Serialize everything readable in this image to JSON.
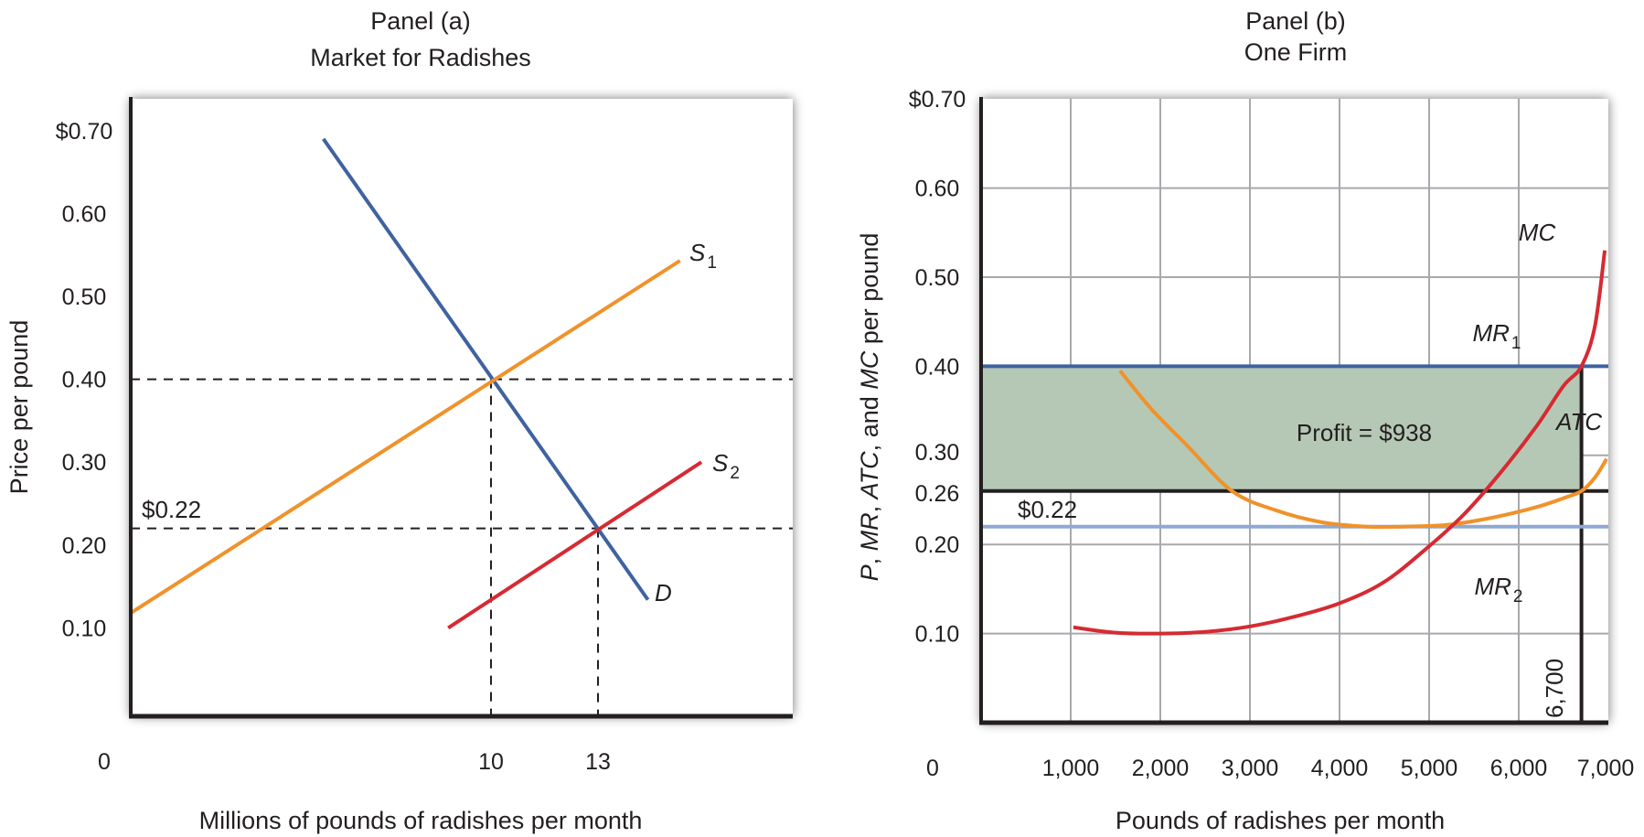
{
  "chart_data": [
    {
      "type": "line",
      "panel_label": "Panel (a)",
      "title": "Market for Radishes",
      "xlabel": "Millions of pounds of radishes per month",
      "ylabel": "Price per pound",
      "xlim": [
        0,
        18.5
      ],
      "ylim": [
        0,
        0.7
      ],
      "grid": false,
      "yticks": [
        {
          "value": 0.7,
          "label": "$0.70"
        },
        {
          "value": 0.6,
          "label": "0.60"
        },
        {
          "value": 0.5,
          "label": "0.50"
        },
        {
          "value": 0.4,
          "label": "0.40"
        },
        {
          "value": 0.3,
          "label": "0.30"
        },
        {
          "value": 0.2,
          "label": "0.20"
        },
        {
          "value": 0.1,
          "label": "0.10"
        }
      ],
      "xticks": [
        {
          "value": 0,
          "label": "0"
        },
        {
          "value": 10,
          "label": "10"
        },
        {
          "value": 13,
          "label": "13"
        }
      ],
      "series": [
        {
          "name": "D",
          "label": "D",
          "subscript": "",
          "color": "#3f62a0",
          "points": [
            [
              5.3,
              0.69
            ],
            [
              14.4,
              0.134
            ]
          ]
        },
        {
          "name": "S1",
          "label": "S",
          "subscript": "1",
          "color": "#f0922a",
          "points": [
            [
              -0.1,
              0.118
            ],
            [
              15.3,
              0.543
            ]
          ]
        },
        {
          "name": "S2",
          "label": "S",
          "subscript": "2",
          "color": "#d62a32",
          "points": [
            [
              8.8,
              0.1
            ],
            [
              15.9,
              0.3
            ]
          ]
        }
      ],
      "reference_lines": [
        {
          "orientation": "horizontal",
          "value": 0.4,
          "style": "dashed"
        },
        {
          "orientation": "horizontal",
          "value": 0.22,
          "style": "dashed"
        },
        {
          "orientation": "vertical",
          "value": 10,
          "from": 0,
          "to": 0.4,
          "style": "dashed"
        },
        {
          "orientation": "vertical",
          "value": 13,
          "from": 0,
          "to": 0.22,
          "style": "dashed"
        }
      ],
      "annotations": [
        {
          "text": "$0.22",
          "x": 0.4,
          "y": 0.22
        }
      ],
      "equilibria": [
        {
          "quantity": 10,
          "price": 0.4
        },
        {
          "quantity": 13,
          "price": 0.22
        }
      ]
    },
    {
      "type": "line",
      "panel_label": "Panel (b)",
      "title": "One Firm",
      "xlabel": "Pounds of radishes per month",
      "ylabel_parts": [
        {
          "text": "P",
          "italic": true
        },
        {
          "text": ", ",
          "italic": false
        },
        {
          "text": "MR",
          "italic": true
        },
        {
          "text": ", ",
          "italic": false
        },
        {
          "text": "ATC",
          "italic": true
        },
        {
          "text": ", and ",
          "italic": false
        },
        {
          "text": "MC",
          "italic": true
        },
        {
          "text": " per pound",
          "italic": false
        }
      ],
      "xlim": [
        0,
        7000
      ],
      "ylim": [
        0,
        0.7
      ],
      "grid": true,
      "yticks": [
        {
          "value": 0.7,
          "label": "$0.70"
        },
        {
          "value": 0.6,
          "label": "0.60"
        },
        {
          "value": 0.5,
          "label": "0.50"
        },
        {
          "value": 0.4,
          "label": "0.40"
        },
        {
          "value": 0.3,
          "label": "0.30"
        },
        {
          "value": 0.26,
          "label": "0.26"
        },
        {
          "value": 0.2,
          "label": "0.20"
        },
        {
          "value": 0.1,
          "label": "0.10"
        }
      ],
      "xticks": [
        {
          "value": 0,
          "label": "0"
        },
        {
          "value": 1000,
          "label": "1,000"
        },
        {
          "value": 2000,
          "label": "2,000"
        },
        {
          "value": 3000,
          "label": "3,000"
        },
        {
          "value": 4000,
          "label": "4,000"
        },
        {
          "value": 5000,
          "label": "5,000"
        },
        {
          "value": 6000,
          "label": "6,000"
        },
        {
          "value": 7000,
          "label": "7,000"
        }
      ],
      "series": [
        {
          "name": "MC",
          "label": "MC",
          "subscript": "",
          "color": "#d62a32",
          "points": [
            [
              1030,
              0.107
            ],
            [
              1500,
              0.101
            ],
            [
              2000,
              0.1
            ],
            [
              2500,
              0.102
            ],
            [
              3000,
              0.108
            ],
            [
              3500,
              0.119
            ],
            [
              4000,
              0.134
            ],
            [
              4500,
              0.158
            ],
            [
              5000,
              0.198
            ],
            [
              5400,
              0.235
            ],
            [
              5800,
              0.281
            ],
            [
              6200,
              0.333
            ],
            [
              6500,
              0.378
            ],
            [
              6700,
              0.4
            ],
            [
              6850,
              0.445
            ],
            [
              6960,
              0.53
            ]
          ]
        },
        {
          "name": "ATC",
          "label": "ATC",
          "subscript": "",
          "color": "#f0922a",
          "points": [
            [
              1550,
              0.395
            ],
            [
              1900,
              0.352
            ],
            [
              2300,
              0.311
            ],
            [
              2800,
              0.26
            ],
            [
              3300,
              0.238
            ],
            [
              3800,
              0.225
            ],
            [
              4300,
              0.22
            ],
            [
              4700,
              0.22
            ],
            [
              5200,
              0.222
            ],
            [
              5700,
              0.23
            ],
            [
              6200,
              0.242
            ],
            [
              6500,
              0.252
            ],
            [
              6700,
              0.26
            ],
            [
              6850,
              0.275
            ],
            [
              6980,
              0.296
            ]
          ]
        },
        {
          "name": "MR1",
          "label": "MR",
          "subscript": "1",
          "color": "#3f62a0",
          "points": [
            [
              0,
              0.4
            ],
            [
              7000,
              0.4
            ]
          ]
        },
        {
          "name": "MR2",
          "label": "MR",
          "subscript": "2",
          "color": "#8fa8d4",
          "points": [
            [
              0,
              0.22
            ],
            [
              7000,
              0.22
            ]
          ]
        }
      ],
      "reference_lines": [
        {
          "orientation": "horizontal",
          "value": 0.26,
          "style": "solid",
          "color": "#231f20"
        },
        {
          "orientation": "vertical",
          "value": 6700,
          "from": 0,
          "to": 0.4,
          "style": "solid",
          "color": "#231f20",
          "label": "6,700"
        }
      ],
      "shaded_regions": [
        {
          "name": "profit",
          "x": [
            0,
            6700
          ],
          "y": [
            0.26,
            0.4
          ],
          "color": "#b5c8b5",
          "label": "Profit = $938"
        }
      ],
      "annotations": [
        {
          "text": "$0.22",
          "x": 350,
          "y": 0.22
        }
      ]
    }
  ]
}
